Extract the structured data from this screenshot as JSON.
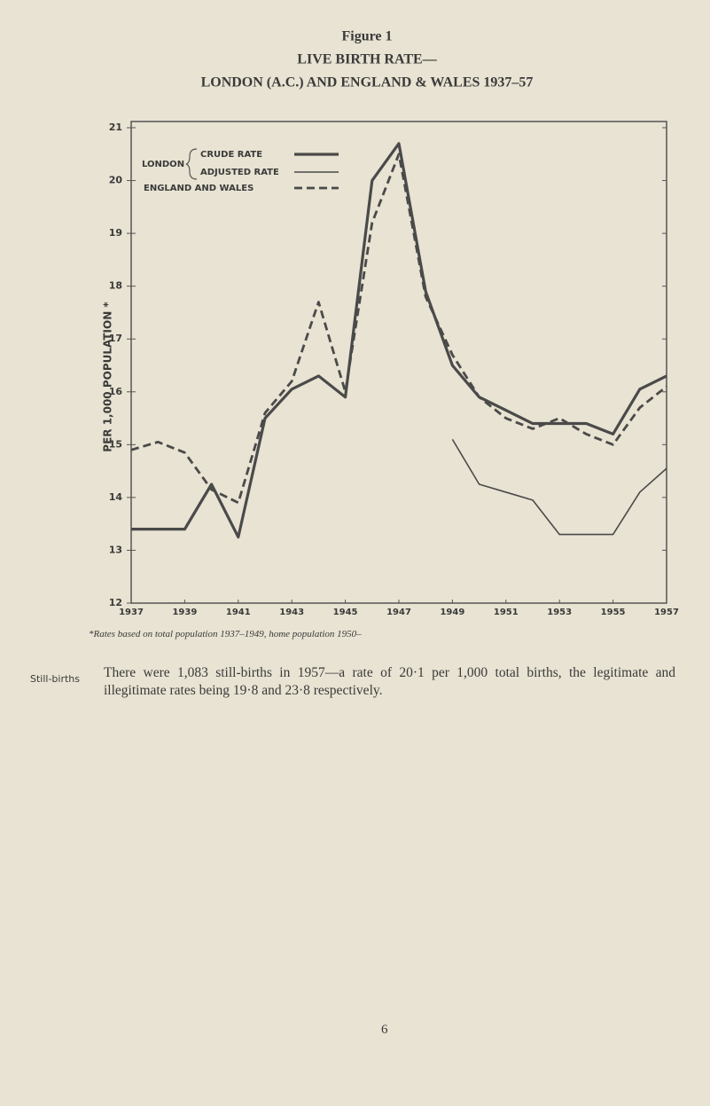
{
  "figure_label": "Figure 1",
  "chart_data": {
    "type": "line",
    "title": "LIVE BIRTH RATE—",
    "subtitle": "LONDON (A.C.) AND ENGLAND & WALES 1937–57",
    "y_label": "PER 1,000 POPULATION *",
    "legend_group": "LONDON",
    "x": [
      1937,
      1938,
      1939,
      1940,
      1941,
      1942,
      1943,
      1944,
      1945,
      1946,
      1947,
      1948,
      1949,
      1950,
      1951,
      1952,
      1953,
      1954,
      1955,
      1956,
      1957
    ],
    "series": [
      {
        "name": "CRUDE RATE",
        "color": "#4a4a4a",
        "style": "thick",
        "values": [
          13.4,
          13.4,
          13.4,
          14.25,
          13.25,
          15.5,
          16.05,
          16.3,
          15.9,
          20.0,
          20.7,
          17.9,
          16.5,
          15.9,
          15.65,
          15.4,
          15.4,
          15.4,
          15.2,
          16.05,
          16.3
        ]
      },
      {
        "name": "ADJUSTED RATE",
        "color": "#4a4a4a",
        "style": "thin",
        "values": [
          null,
          null,
          null,
          null,
          null,
          null,
          null,
          null,
          null,
          null,
          null,
          null,
          15.1,
          14.25,
          14.1,
          13.95,
          13.3,
          13.3,
          13.3,
          14.1,
          14.55
        ]
      },
      {
        "name": "ENGLAND AND WALES",
        "color": "#4a4a4a",
        "style": "dashed",
        "values": [
          14.9,
          15.05,
          14.85,
          14.15,
          13.9,
          15.6,
          16.2,
          17.7,
          16.0,
          19.2,
          20.5,
          17.8,
          16.7,
          15.9,
          15.5,
          15.3,
          15.5,
          15.2,
          15.0,
          15.7,
          16.1
        ]
      }
    ],
    "xlim": [
      1937,
      1957
    ],
    "xticks": [
      1937,
      1939,
      1941,
      1943,
      1945,
      1947,
      1949,
      1951,
      1953,
      1955,
      1957
    ],
    "ylim": [
      12,
      21
    ],
    "yticks": [
      12,
      13,
      14,
      15,
      16,
      17,
      18,
      19,
      20,
      21
    ],
    "legend": "upper left"
  },
  "footnote": "*Rates based on total population 1937–1949, home population 1950–",
  "section": {
    "heading": "Still-births",
    "text": "There were 1,083 still-births in 1957—a rate of 20·1 per 1,000 total births, the legitimate and illegitimate rates being 19·8 and 23·8 respectively."
  },
  "page_number": "6"
}
